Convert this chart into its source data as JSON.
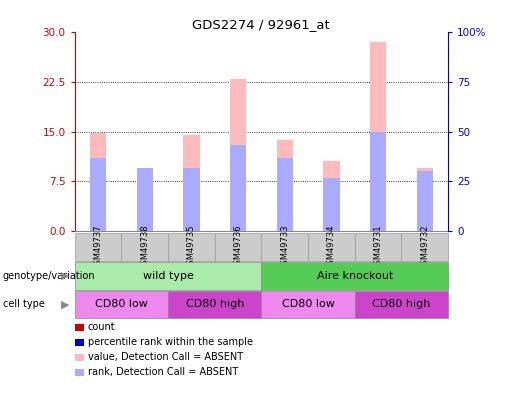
{
  "title": "GDS2274 / 92961_at",
  "samples": [
    "GSM49737",
    "GSM49738",
    "GSM49735",
    "GSM49736",
    "GSM49733",
    "GSM49734",
    "GSM49731",
    "GSM49732"
  ],
  "pink_bar_heights": [
    14.8,
    9.5,
    14.5,
    23.0,
    13.8,
    10.5,
    28.5,
    9.5
  ],
  "blue_bar_heights": [
    11.0,
    9.5,
    9.5,
    13.0,
    11.0,
    8.0,
    15.0,
    9.0
  ],
  "pink_bar_color": "#ffbbbb",
  "blue_bar_color": "#aaaaff",
  "ylim_left": [
    0,
    30
  ],
  "ylim_right": [
    0,
    100
  ],
  "yticks_left": [
    0,
    7.5,
    15,
    22.5,
    30
  ],
  "yticks_right": [
    0,
    25,
    50,
    75,
    100
  ],
  "yticklabels_right": [
    "0",
    "25",
    "50",
    "75",
    "100%"
  ],
  "genotype_groups": [
    {
      "label": "wild type",
      "start": 0,
      "end": 4,
      "color": "#aaeaaa"
    },
    {
      "label": "Aire knockout",
      "start": 4,
      "end": 8,
      "color": "#55cc55"
    }
  ],
  "cell_type_groups": [
    {
      "label": "CD80 low",
      "start": 0,
      "end": 2,
      "color": "#ee88ee"
    },
    {
      "label": "CD80 high",
      "start": 2,
      "end": 4,
      "color": "#cc44cc"
    },
    {
      "label": "CD80 low",
      "start": 4,
      "end": 6,
      "color": "#ee88ee"
    },
    {
      "label": "CD80 high",
      "start": 6,
      "end": 8,
      "color": "#cc44cc"
    }
  ],
  "legend_items": [
    {
      "label": "count",
      "color": "#cc0000"
    },
    {
      "label": "percentile rank within the sample",
      "color": "#0000cc"
    },
    {
      "label": "value, Detection Call = ABSENT",
      "color": "#ffbbbb"
    },
    {
      "label": "rank, Detection Call = ABSENT",
      "color": "#aaaaff"
    }
  ],
  "left_axis_color": "#cc0000",
  "right_axis_color": "#0000cc",
  "sample_box_color": "#cccccc",
  "bar_width": 0.35
}
